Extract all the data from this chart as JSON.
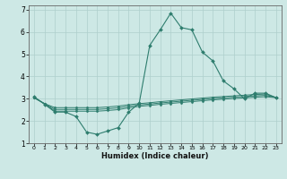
{
  "title": "",
  "xlabel": "Humidex (Indice chaleur)",
  "ylabel": "",
  "xlim": [
    -0.5,
    23.5
  ],
  "ylim": [
    1,
    7.2
  ],
  "yticks": [
    1,
    2,
    3,
    4,
    5,
    6,
    7
  ],
  "xticks": [
    0,
    1,
    2,
    3,
    4,
    5,
    6,
    7,
    8,
    9,
    10,
    11,
    12,
    13,
    14,
    15,
    16,
    17,
    18,
    19,
    20,
    21,
    22,
    23
  ],
  "bg_color": "#cde8e5",
  "line_color": "#2e7d6e",
  "grid_color": "#aecfcc",
  "lines": [
    {
      "x": [
        0,
        1,
        2,
        3,
        4,
        5,
        6,
        7,
        8,
        9,
        10,
        11,
        12,
        13,
        14,
        15,
        16,
        17,
        18,
        19,
        20,
        21,
        22,
        23
      ],
      "y": [
        3.1,
        2.75,
        2.4,
        2.4,
        2.2,
        1.5,
        1.4,
        1.55,
        1.7,
        2.4,
        2.8,
        5.4,
        6.1,
        6.85,
        6.2,
        6.1,
        5.1,
        4.7,
        3.8,
        3.45,
        3.0,
        3.25,
        3.25,
        3.05
      ]
    },
    {
      "x": [
        0,
        1,
        2,
        3,
        4,
        5,
        6,
        7,
        8,
        9,
        10,
        11,
        12,
        13,
        14,
        15,
        16,
        17,
        18,
        19,
        20,
        21,
        22,
        23
      ],
      "y": [
        3.05,
        2.78,
        2.6,
        2.6,
        2.6,
        2.6,
        2.6,
        2.63,
        2.67,
        2.73,
        2.78,
        2.82,
        2.87,
        2.91,
        2.95,
        2.99,
        3.03,
        3.07,
        3.1,
        3.13,
        3.16,
        3.19,
        3.21,
        3.05
      ]
    },
    {
      "x": [
        0,
        1,
        2,
        3,
        4,
        5,
        6,
        7,
        8,
        9,
        10,
        11,
        12,
        13,
        14,
        15,
        16,
        17,
        18,
        19,
        20,
        21,
        22,
        23
      ],
      "y": [
        3.05,
        2.78,
        2.52,
        2.52,
        2.52,
        2.52,
        2.52,
        2.55,
        2.59,
        2.66,
        2.72,
        2.76,
        2.81,
        2.85,
        2.89,
        2.93,
        2.97,
        3.01,
        3.04,
        3.07,
        3.1,
        3.13,
        3.15,
        3.05
      ]
    },
    {
      "x": [
        0,
        1,
        2,
        3,
        4,
        5,
        6,
        7,
        8,
        9,
        10,
        11,
        12,
        13,
        14,
        15,
        16,
        17,
        18,
        19,
        20,
        21,
        22,
        23
      ],
      "y": [
        3.05,
        2.78,
        2.44,
        2.44,
        2.44,
        2.44,
        2.44,
        2.47,
        2.51,
        2.59,
        2.66,
        2.7,
        2.75,
        2.79,
        2.83,
        2.87,
        2.91,
        2.95,
        2.98,
        3.01,
        3.04,
        3.07,
        3.09,
        3.05
      ]
    }
  ]
}
